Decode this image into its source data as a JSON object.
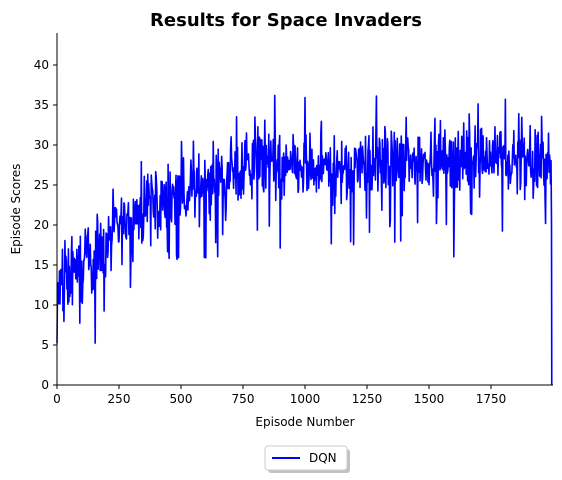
{
  "chart_data": {
    "type": "line",
    "title": "Results for Space Invaders",
    "xlabel": "Episode Number",
    "ylabel": "Episode Scores",
    "xlim": [
      0,
      2000
    ],
    "ylim": [
      0,
      44
    ],
    "xticks": [
      0,
      250,
      500,
      750,
      1000,
      1250,
      1500,
      1750
    ],
    "yticks": [
      0,
      5,
      10,
      15,
      20,
      25,
      30,
      35,
      40
    ],
    "grid": false,
    "legend": {
      "placement": "bottom-center",
      "entries": [
        "DQN"
      ]
    },
    "series": [
      {
        "name": "DQN",
        "color": "#0000ff",
        "trend": {
          "x": [
            0,
            50,
            100,
            150,
            200,
            250,
            300,
            350,
            400,
            450,
            500,
            550,
            600,
            650,
            700,
            750,
            800,
            850,
            900,
            950,
            1000,
            1050,
            1100,
            1150,
            1200,
            1250,
            1300,
            1350,
            1400,
            1450,
            1500,
            1550,
            1600,
            1650,
            1700,
            1750,
            1800,
            1850,
            1900,
            1950,
            1995
          ],
          "y": [
            11,
            13.5,
            14.5,
            16,
            17.5,
            19.5,
            21,
            22,
            22.5,
            23,
            23.5,
            24.5,
            25.5,
            26,
            26.5,
            27,
            27.5,
            27.5,
            27,
            27,
            27,
            27,
            27,
            27,
            27.5,
            28,
            28,
            28,
            28,
            28,
            28.5,
            28.5,
            28.5,
            28.5,
            28.5,
            28.5,
            28.5,
            28.5,
            28,
            28,
            28
          ]
        },
        "noise_amplitude": 4.2,
        "ymin_observed": 5.2,
        "ymax_observed": 36.2,
        "final_point": {
          "x": 1995,
          "y": 0
        }
      }
    ]
  }
}
